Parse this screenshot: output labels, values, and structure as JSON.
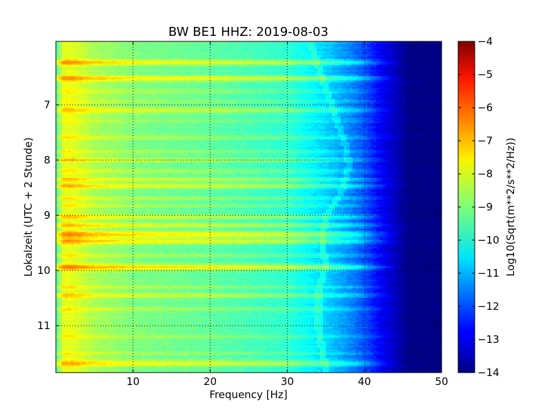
{
  "chart_data": {
    "type": "heatmap",
    "title": "BW BE1 HHZ: 2019-08-03",
    "xlabel": "Frequency [Hz]",
    "ylabel": "Lokalzeit (UTC + 2 Stunde)",
    "colorbar_label": "Log10(Sqrt(m**2/s**2/Hz))",
    "colormap": "jet",
    "grid": true,
    "xlim": [
      0,
      50
    ],
    "ylim": [
      5.85,
      11.85
    ],
    "y_inverted": true,
    "clim": [
      -14,
      -4
    ],
    "x_ticks": [
      10,
      20,
      30,
      40,
      50
    ],
    "y_ticks": [
      7,
      8,
      9,
      10,
      11
    ],
    "colorbar_ticks": [
      -4,
      -5,
      -6,
      -7,
      -8,
      -9,
      -10,
      -11,
      -12,
      -13,
      -14
    ],
    "x_tick_labels": [
      "10",
      "20",
      "30",
      "40",
      "50"
    ],
    "y_tick_labels": [
      "7",
      "8",
      "9",
      "10",
      "11"
    ],
    "colorbar_tick_labels": [
      "−4",
      "−5",
      "−6",
      "−7",
      "−8",
      "−9",
      "−10",
      "−11",
      "−12",
      "−13",
      "−14"
    ],
    "spectrum_profile": {
      "frequency_hz": [
        0,
        1,
        2,
        3,
        5,
        10,
        20,
        30,
        33,
        36,
        38,
        40,
        42,
        44,
        46,
        48,
        50
      ],
      "log10_amplitude": [
        -9.5,
        -8.0,
        -8.0,
        -8.2,
        -8.6,
        -9.0,
        -9.3,
        -9.8,
        -10.3,
        -10.9,
        -11.4,
        -12.0,
        -12.8,
        -13.4,
        -14.0,
        -14.0,
        -14.0
      ]
    },
    "bright_bands": [
      {
        "time_h": 6.23,
        "log10_offset": 1.4,
        "width_h": 0.035
      },
      {
        "time_h": 6.52,
        "log10_offset": 1.4,
        "width_h": 0.035
      },
      {
        "time_h": 6.75,
        "log10_offset": 0.5,
        "width_h": 0.03
      },
      {
        "time_h": 6.93,
        "log10_offset": 0.4,
        "width_h": 0.025
      },
      {
        "time_h": 7.1,
        "log10_offset": 1.0,
        "width_h": 0.035
      },
      {
        "time_h": 7.3,
        "log10_offset": 0.3,
        "width_h": 0.025
      },
      {
        "time_h": 7.6,
        "log10_offset": 0.5,
        "width_h": 0.025
      },
      {
        "time_h": 7.85,
        "log10_offset": 0.5,
        "width_h": 0.025
      },
      {
        "time_h": 8.0,
        "log10_offset": 0.8,
        "width_h": 0.03
      },
      {
        "time_h": 8.2,
        "log10_offset": 0.6,
        "width_h": 0.025
      },
      {
        "time_h": 8.35,
        "log10_offset": 0.9,
        "width_h": 0.03
      },
      {
        "time_h": 8.47,
        "log10_offset": 1.1,
        "width_h": 0.03
      },
      {
        "time_h": 8.7,
        "log10_offset": 0.5,
        "width_h": 0.025
      },
      {
        "time_h": 8.83,
        "log10_offset": 0.6,
        "width_h": 0.025
      },
      {
        "time_h": 9.03,
        "log10_offset": 1.0,
        "width_h": 0.03
      },
      {
        "time_h": 9.18,
        "log10_offset": 1.0,
        "width_h": 0.03
      },
      {
        "time_h": 9.35,
        "log10_offset": 1.6,
        "width_h": 0.04
      },
      {
        "time_h": 9.47,
        "log10_offset": 1.3,
        "width_h": 0.035
      },
      {
        "time_h": 9.72,
        "log10_offset": 0.5,
        "width_h": 0.025
      },
      {
        "time_h": 9.94,
        "log10_offset": 1.6,
        "width_h": 0.04
      },
      {
        "time_h": 10.3,
        "log10_offset": 0.6,
        "width_h": 0.025
      },
      {
        "time_h": 10.45,
        "log10_offset": 1.0,
        "width_h": 0.03
      },
      {
        "time_h": 10.7,
        "log10_offset": 0.5,
        "width_h": 0.025
      },
      {
        "time_h": 11.2,
        "log10_offset": 0.4,
        "width_h": 0.025
      },
      {
        "time_h": 11.5,
        "log10_offset": 0.5,
        "width_h": 0.025
      },
      {
        "time_h": 11.68,
        "log10_offset": 1.3,
        "width_h": 0.035
      }
    ],
    "faint_trace": {
      "frequency_hz": [
        33.0,
        34.5,
        35.5,
        36.5,
        37.5,
        38.0,
        37.0,
        35.0,
        34.5,
        35.0,
        34.0,
        34.0,
        35.0
      ],
      "time_h": [
        5.9,
        6.5,
        6.9,
        7.3,
        7.7,
        8.1,
        8.6,
        9.0,
        9.5,
        9.9,
        10.4,
        11.0,
        11.8
      ]
    }
  }
}
